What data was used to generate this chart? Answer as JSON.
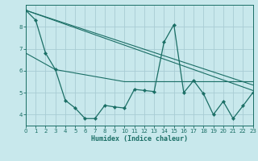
{
  "xlabel": "Humidex (Indice chaleur)",
  "background_color": "#c8e8ec",
  "grid_color": "#a8ccd4",
  "line_color": "#1a6e65",
  "xlim": [
    0,
    23
  ],
  "ylim": [
    3.5,
    9.0
  ],
  "yticks": [
    4,
    5,
    6,
    7,
    8
  ],
  "xticks": [
    0,
    1,
    2,
    3,
    4,
    5,
    6,
    7,
    8,
    9,
    10,
    11,
    12,
    13,
    14,
    15,
    16,
    17,
    18,
    19,
    20,
    21,
    22,
    23
  ],
  "main_x": [
    0,
    1,
    2,
    3,
    4,
    5,
    6,
    7,
    8,
    9,
    10,
    11,
    12,
    13,
    14,
    15,
    16,
    17,
    18,
    19,
    20,
    21,
    22,
    23
  ],
  "main_y": [
    8.75,
    8.3,
    6.8,
    6.05,
    4.65,
    4.3,
    3.82,
    3.82,
    4.42,
    4.35,
    4.3,
    5.15,
    5.1,
    5.05,
    7.3,
    8.1,
    5.0,
    5.55,
    4.95,
    4.0,
    4.6,
    3.82,
    4.4,
    5.0
  ],
  "trend_lines": [
    {
      "x": [
        0,
        23
      ],
      "y": [
        8.75,
        5.1
      ]
    },
    {
      "x": [
        0,
        23
      ],
      "y": [
        8.75,
        5.35
      ]
    },
    {
      "x": [
        0,
        3,
        10,
        23
      ],
      "y": [
        6.8,
        6.05,
        5.5,
        5.5
      ]
    }
  ]
}
